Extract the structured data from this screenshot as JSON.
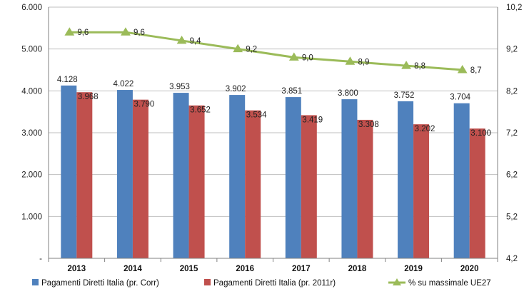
{
  "chart_data": {
    "type": "bar",
    "categories": [
      "2013",
      "2014",
      "2015",
      "2016",
      "2017",
      "2018",
      "2019",
      "2020"
    ],
    "series": [
      {
        "name": "Pagamenti Diretti Italia (pr. Corr)",
        "type": "bar",
        "axis": "left",
        "color": "#4F81BD",
        "values": [
          4128,
          4022,
          3953,
          3902,
          3851,
          3800,
          3752,
          3704
        ],
        "labels": [
          "4.128",
          "4.022",
          "3.953",
          "3.902",
          "3.851",
          "3.800",
          "3.752",
          "3.704"
        ]
      },
      {
        "name": "Pagamenti Diretti Italia (pr. 2011r)",
        "type": "bar",
        "axis": "left",
        "color": "#C0504D",
        "values": [
          3968,
          3790,
          3652,
          3534,
          3419,
          3308,
          3202,
          3100
        ],
        "labels": [
          "3.968",
          "3.790",
          "3.652",
          "3.534",
          "3.419",
          "3.308",
          "3.202",
          "3.100"
        ]
      },
      {
        "name": "% su massimale  UE27",
        "type": "line",
        "axis": "right",
        "color": "#9BBB59",
        "values": [
          9.6,
          9.6,
          9.4,
          9.2,
          9.0,
          8.9,
          8.8,
          8.7
        ],
        "labels": [
          "9,6",
          "9,6",
          "9,4",
          "9,2",
          "9,0",
          "8,9",
          "8,8",
          "8,7"
        ]
      }
    ],
    "y_left": {
      "ylim": [
        0,
        6000
      ],
      "ticks": [
        0,
        1000,
        2000,
        3000,
        4000,
        5000,
        6000
      ],
      "tick_labels": [
        "-",
        "1.000",
        "2.000",
        "3.000",
        "4.000",
        "5.000",
        "6.000"
      ]
    },
    "y_right": {
      "ylim": [
        4.2,
        10.2
      ],
      "ticks": [
        4.2,
        5.2,
        6.2,
        7.2,
        8.2,
        9.2,
        10.2
      ],
      "tick_labels": [
        "4,2",
        "5,2",
        "6,2",
        "7,2",
        "8,2",
        "9,2",
        "10,2"
      ]
    },
    "grid": true,
    "legend_position": "bottom",
    "title": "",
    "xlabel": "",
    "ylabel": ""
  }
}
